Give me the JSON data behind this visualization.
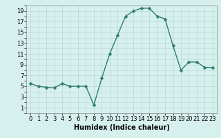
{
  "x": [
    0,
    1,
    2,
    3,
    4,
    5,
    6,
    7,
    8,
    9,
    10,
    11,
    12,
    13,
    14,
    15,
    16,
    17,
    18,
    19,
    20,
    21,
    22,
    23
  ],
  "y": [
    5.5,
    5.0,
    4.8,
    4.7,
    5.5,
    5.0,
    5.0,
    5.0,
    1.5,
    6.5,
    11.0,
    14.5,
    18.0,
    19.0,
    19.5,
    19.5,
    18.0,
    17.5,
    12.5,
    8.0,
    9.5,
    9.5,
    8.5,
    8.5
  ],
  "xlabel": "Humidex (Indice chaleur)",
  "xlim": [
    -0.5,
    23.5
  ],
  "ylim": [
    0,
    20
  ],
  "yticks": [
    1,
    3,
    5,
    7,
    9,
    11,
    13,
    15,
    17,
    19
  ],
  "xticks": [
    0,
    1,
    2,
    3,
    4,
    5,
    6,
    7,
    8,
    9,
    10,
    11,
    12,
    13,
    14,
    15,
    16,
    17,
    18,
    19,
    20,
    21,
    22,
    23
  ],
  "line_color": "#2e7d6e",
  "marker_color": "#2e7d6e",
  "bg_color": "#d6f0ee",
  "grid_color": "#b8d8d4",
  "xlabel_fontsize": 7,
  "tick_fontsize": 6,
  "line_width": 1.0,
  "marker_size": 2.5
}
